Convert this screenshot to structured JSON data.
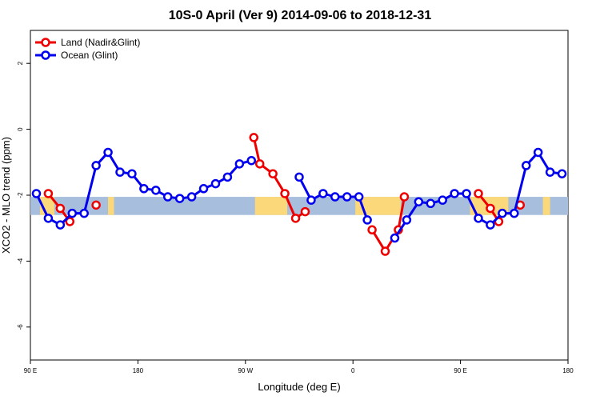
{
  "chart_data": {
    "type": "line",
    "title": "10S-0 April (Ver 9)   2014-09-06 to 2018-12-31",
    "xlabel": "Longitude (deg E)",
    "ylabel": "XCO2 - MLO trend (ppm)",
    "xlim": [
      90,
      540
    ],
    "ylim": [
      -7,
      3
    ],
    "xticks": [
      {
        "value": 90,
        "label": "90 E"
      },
      {
        "value": 180,
        "label": "180"
      },
      {
        "value": 270,
        "label": "90 W"
      },
      {
        "value": 360,
        "label": "0"
      },
      {
        "value": 450,
        "label": "90 E"
      },
      {
        "value": 540,
        "label": "180"
      }
    ],
    "yticks": [
      {
        "value": 2,
        "label": "2"
      },
      {
        "value": 0,
        "label": "0"
      },
      {
        "value": -2,
        "label": "-2"
      },
      {
        "value": -4,
        "label": "-4"
      },
      {
        "value": -6,
        "label": "-6"
      }
    ],
    "band": {
      "ymin": -2.6,
      "ymax": -2.05,
      "color": "#a8bedd"
    },
    "land_spans": [
      [
        98,
        110
      ],
      [
        155,
        160
      ],
      [
        278,
        305
      ],
      [
        362,
        400
      ],
      [
        458,
        490
      ],
      [
        519,
        525
      ]
    ],
    "land_color": "#fbd97a",
    "legend_position": "top-left",
    "series": [
      {
        "name": "Land (Nadir&Glint)",
        "color": "#ee0000",
        "values": [
          [
            105,
            -1.95
          ],
          [
            115,
            -2.4
          ],
          [
            123,
            -2.8
          ],
          null,
          [
            145,
            -2.3
          ],
          null,
          [
            277,
            -0.25
          ],
          [
            282,
            -1.05
          ],
          [
            293,
            -1.35
          ],
          [
            303,
            -1.95
          ],
          [
            312,
            -2.7
          ],
          [
            320,
            -2.5
          ],
          null,
          [
            376,
            -3.05
          ],
          [
            387,
            -3.7
          ],
          [
            398,
            -3.05
          ],
          [
            403,
            -2.05
          ],
          null,
          [
            465,
            -1.95
          ],
          [
            475,
            -2.4
          ],
          [
            482,
            -2.8
          ],
          null,
          [
            500,
            -2.3
          ]
        ]
      },
      {
        "name": "Ocean (Glint)",
        "color": "#0000ee",
        "values": [
          [
            95,
            -1.95
          ],
          [
            105,
            -2.7
          ],
          [
            115,
            -2.9
          ],
          [
            125,
            -2.55
          ],
          [
            135,
            -2.55
          ],
          [
            145,
            -1.1
          ],
          [
            155,
            -0.7
          ],
          [
            165,
            -1.3
          ],
          [
            175,
            -1.35
          ],
          [
            185,
            -1.8
          ],
          [
            195,
            -1.85
          ],
          [
            205,
            -2.05
          ],
          [
            215,
            -2.1
          ],
          [
            225,
            -2.05
          ],
          [
            235,
            -1.8
          ],
          [
            245,
            -1.65
          ],
          [
            255,
            -1.45
          ],
          [
            265,
            -1.05
          ],
          [
            275,
            -0.95
          ],
          null,
          [
            315,
            -1.45
          ],
          [
            325,
            -2.15
          ],
          [
            335,
            -1.95
          ],
          [
            345,
            -2.05
          ],
          [
            355,
            -2.05
          ],
          [
            365,
            -2.05
          ],
          [
            372,
            -2.75
          ],
          null,
          [
            395,
            -3.3
          ],
          [
            405,
            -2.75
          ],
          [
            415,
            -2.2
          ],
          [
            425,
            -2.25
          ],
          [
            435,
            -2.15
          ],
          [
            445,
            -1.95
          ],
          [
            455,
            -1.95
          ],
          [
            465,
            -2.7
          ],
          [
            475,
            -2.9
          ],
          [
            485,
            -2.55
          ],
          [
            495,
            -2.55
          ],
          [
            505,
            -1.1
          ],
          [
            515,
            -0.7
          ],
          [
            525,
            -1.3
          ],
          [
            535,
            -1.35
          ]
        ]
      }
    ]
  }
}
